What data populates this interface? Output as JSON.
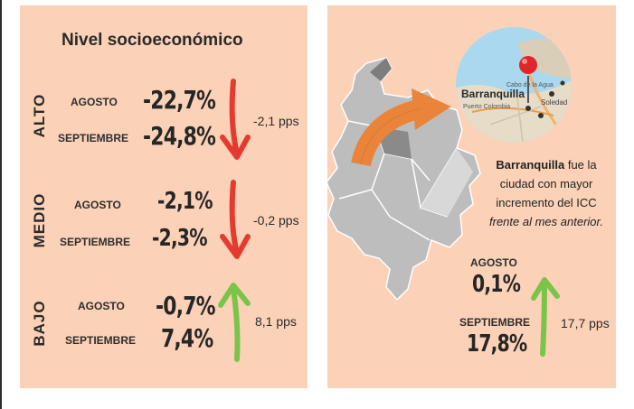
{
  "left": {
    "title": "Nivel socioeconómico",
    "levels": [
      {
        "label": "ALTO",
        "rows": [
          {
            "month": "AGOSTO",
            "value": "-22,7%"
          },
          {
            "month": "SEPTIEMBRE",
            "value": "-24,8%"
          }
        ],
        "change": "-2,1 pps",
        "trend": "down",
        "trend_color": "#e43a2f"
      },
      {
        "label": "MEDIO",
        "rows": [
          {
            "month": "AGOSTO",
            "value": "-2,1%"
          },
          {
            "month": "SEPTIEMBRE",
            "value": "-2,3%"
          }
        ],
        "change": "-0,2 pps",
        "trend": "down",
        "trend_color": "#e43a2f"
      },
      {
        "label": "BAJO",
        "rows": [
          {
            "month": "AGOSTO",
            "value": "-0,7%"
          },
          {
            "month": "SEPTIEMBRE",
            "value": "7,4%"
          }
        ],
        "change": "8,1 pps",
        "trend": "up",
        "trend_color": "#7cc34a"
      }
    ]
  },
  "right": {
    "map_labels": {
      "cabo": "Cabo de la Agua",
      "city": "Barranquilla",
      "west": "Puerto Colombia",
      "east": "Soledad"
    },
    "city_name": "Barranquilla",
    "city_text_1": " fue ",
    "city_text_2": "la ciudad con mayor incremento del ICC",
    "city_text_3": "frente al mes anterior.",
    "rows": [
      {
        "month": "AGOSTO",
        "value": "0,1%"
      },
      {
        "month": "SEPTIEMBRE",
        "value": "17,8%"
      }
    ],
    "change": "17,7 pps",
    "trend": "up",
    "trend_color": "#7cc34a",
    "pointer_arrow_color": "#e9843a"
  }
}
